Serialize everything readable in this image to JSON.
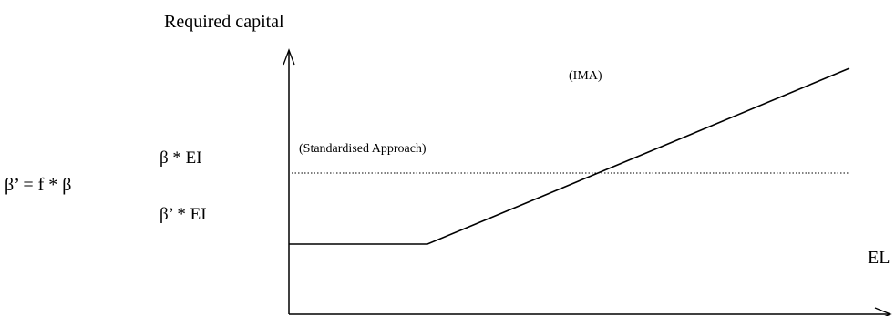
{
  "labels": {
    "y_axis": "Required capital",
    "x_axis": "EL",
    "ima": "(IMA)",
    "standardised": "(Standardised Approach)",
    "beta_ei": "β * EI",
    "beta_prime_ei": "β’ * EI",
    "formula": "β’ = f * β"
  },
  "colors": {
    "line": "#000000",
    "background": "#ffffff"
  }
}
